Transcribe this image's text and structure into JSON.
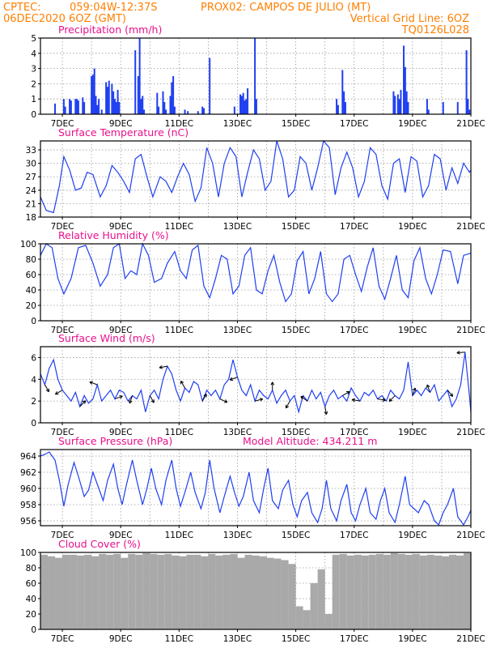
{
  "header": {
    "line1_left": "CPTEC:",
    "line1_coords": "059:04W-12:37S",
    "line1_location": "PROX02: CAMPOS DE JULIO (MT)",
    "line2_left": "06DEC2020 6OZ (GMT)",
    "line2_right": "Vertical Grid Line: 6OZ",
    "line3_right": "TQ0126L028"
  },
  "colors": {
    "header": "#ff7f00",
    "panel_title": "#e8108c",
    "series": "#1f3ff0",
    "cloud": "#a9a9a9",
    "wind_arrow": "#000000"
  },
  "x_axis": {
    "tick_labels": [
      "7DEC",
      "9DEC",
      "11DEC",
      "13DEC",
      "15DEC",
      "17DEC",
      "19DEC",
      "21DEC"
    ],
    "tick_days": [
      7,
      9,
      11,
      13,
      15,
      17,
      19,
      21
    ],
    "range_days": [
      6.25,
      21.0
    ]
  },
  "chart_data": [
    {
      "type": "bar",
      "title": "Precipitation (mm/h)",
      "ylim": [
        0,
        5
      ],
      "yticks": [
        0,
        1,
        2,
        3,
        4,
        5
      ],
      "x": [
        6.75,
        7.05,
        7.1,
        7.25,
        7.3,
        7.45,
        7.5,
        7.55,
        7.7,
        7.75,
        8.0,
        8.05,
        8.1,
        8.15,
        8.2,
        8.25,
        8.35,
        8.5,
        8.55,
        8.6,
        8.7,
        8.75,
        8.8,
        8.85,
        8.9,
        8.95,
        9.5,
        9.6,
        9.65,
        9.7,
        9.75,
        9.8,
        10.25,
        10.3,
        10.45,
        10.5,
        10.55,
        10.7,
        10.75,
        10.8,
        10.85,
        11.2,
        11.3,
        11.65,
        11.8,
        11.85,
        12.05,
        12.9,
        13.1,
        13.15,
        13.2,
        13.25,
        13.3,
        13.35,
        13.6,
        13.65,
        16.4,
        16.45,
        16.6,
        16.65,
        16.7,
        18.35,
        18.4,
        18.5,
        18.55,
        18.6,
        18.7,
        18.75,
        18.8,
        18.85,
        19.5,
        19.55,
        20.05,
        20.55,
        20.85,
        20.9,
        20.95
      ],
      "values": [
        0.7,
        1.0,
        0.5,
        1.0,
        0.9,
        1.0,
        1.0,
        0.9,
        1.1,
        0.8,
        2.5,
        2.6,
        3.0,
        1.2,
        0.6,
        1.0,
        0.3,
        2.1,
        1.8,
        2.2,
        2.0,
        1.5,
        1.0,
        0.8,
        1.6,
        0.8,
        4.2,
        2.5,
        5.0,
        1.0,
        1.2,
        0.3,
        1.4,
        0.5,
        1.5,
        0.8,
        0.3,
        1.2,
        2.1,
        2.5,
        0.5,
        0.3,
        0.2,
        0.2,
        0.5,
        0.4,
        3.7,
        0.5,
        1.3,
        1.2,
        1.4,
        0.9,
        1.0,
        1.7,
        5.0,
        1.0,
        1.0,
        0.6,
        2.9,
        1.5,
        0.8,
        1.5,
        1.2,
        1.3,
        1.0,
        1.6,
        4.5,
        3.1,
        1.5,
        0.8,
        1.0,
        0.3,
        0.8,
        0.8,
        4.2,
        1.0,
        0.3
      ]
    },
    {
      "type": "line",
      "title": "Surface Temperature (nC)",
      "ylim": [
        18,
        35
      ],
      "yticks": [
        18,
        21,
        24,
        27,
        30,
        33
      ],
      "x": [
        6.25,
        6.45,
        6.7,
        6.9,
        7.05,
        7.25,
        7.45,
        7.65,
        7.85,
        8.05,
        8.3,
        8.5,
        8.7,
        8.9,
        9.1,
        9.3,
        9.5,
        9.7,
        9.9,
        10.1,
        10.35,
        10.55,
        10.75,
        10.95,
        11.15,
        11.35,
        11.55,
        11.75,
        11.95,
        12.15,
        12.35,
        12.55,
        12.75,
        12.95,
        13.15,
        13.35,
        13.55,
        13.75,
        13.95,
        14.15,
        14.35,
        14.55,
        14.75,
        14.95,
        15.15,
        15.35,
        15.55,
        15.75,
        15.95,
        16.15,
        16.35,
        16.55,
        16.75,
        16.95,
        17.15,
        17.35,
        17.55,
        17.75,
        17.95,
        18.15,
        18.35,
        18.55,
        18.75,
        18.95,
        19.15,
        19.35,
        19.55,
        19.75,
        19.95,
        20.15,
        20.35,
        20.55,
        20.75,
        20.95,
        21.0
      ],
      "values": [
        22.5,
        19.5,
        19.0,
        25.0,
        31.5,
        28.5,
        24.0,
        24.5,
        28.0,
        27.5,
        22.5,
        25.0,
        29.5,
        28.0,
        26.0,
        23.5,
        31.0,
        32.0,
        27.0,
        22.5,
        27.0,
        26.0,
        23.5,
        27.0,
        30.0,
        27.5,
        21.5,
        24.5,
        33.5,
        30.0,
        22.5,
        30.0,
        33.5,
        31.5,
        22.5,
        28.0,
        33.0,
        31.0,
        24.0,
        26.0,
        35.0,
        31.0,
        22.5,
        24.0,
        31.5,
        30.0,
        24.0,
        29.0,
        35.0,
        33.5,
        23.0,
        29.0,
        32.5,
        29.0,
        22.5,
        26.0,
        33.5,
        32.0,
        25.0,
        22.0,
        30.0,
        31.0,
        23.5,
        31.5,
        30.5,
        22.5,
        25.0,
        32.0,
        31.0,
        24.0,
        29.0,
        25.5,
        30.0,
        28.0,
        28.5
      ]
    },
    {
      "type": "line",
      "title": "Relative Humidity (%)",
      "ylim": [
        0,
        100
      ],
      "yticks": [
        0,
        20,
        40,
        60,
        80,
        100
      ],
      "x": [
        6.25,
        6.45,
        6.65,
        6.85,
        7.05,
        7.3,
        7.55,
        7.8,
        8.05,
        8.3,
        8.55,
        8.75,
        8.95,
        9.15,
        9.35,
        9.55,
        9.75,
        9.95,
        10.15,
        10.4,
        10.6,
        10.85,
        11.05,
        11.25,
        11.45,
        11.65,
        11.85,
        12.05,
        12.25,
        12.45,
        12.65,
        12.85,
        13.05,
        13.25,
        13.45,
        13.65,
        13.85,
        14.05,
        14.25,
        14.45,
        14.65,
        14.85,
        15.05,
        15.25,
        15.45,
        15.65,
        15.85,
        16.05,
        16.25,
        16.45,
        16.65,
        16.85,
        17.05,
        17.25,
        17.45,
        17.65,
        17.85,
        18.05,
        18.25,
        18.45,
        18.65,
        18.85,
        19.05,
        19.25,
        19.45,
        19.65,
        19.85,
        20.05,
        20.3,
        20.55,
        20.75,
        21.0
      ],
      "values": [
        85,
        100,
        95,
        55,
        35,
        55,
        95,
        98,
        75,
        45,
        60,
        95,
        100,
        55,
        65,
        60,
        100,
        85,
        50,
        55,
        75,
        90,
        65,
        55,
        92,
        98,
        45,
        30,
        55,
        85,
        80,
        35,
        45,
        85,
        95,
        40,
        35,
        65,
        85,
        50,
        25,
        35,
        78,
        90,
        35,
        55,
        90,
        35,
        25,
        35,
        80,
        85,
        60,
        38,
        70,
        95,
        45,
        28,
        55,
        85,
        40,
        30,
        78,
        95,
        55,
        35,
        60,
        92,
        90,
        48,
        85,
        88
      ]
    },
    {
      "type": "line",
      "title": "Surface Wind (m/s)",
      "ylim": [
        0,
        7
      ],
      "yticks": [
        0,
        2,
        4,
        6
      ],
      "x": [
        6.25,
        6.4,
        6.55,
        6.7,
        6.85,
        7.0,
        7.15,
        7.3,
        7.45,
        7.6,
        7.75,
        7.9,
        8.05,
        8.2,
        8.35,
        8.5,
        8.65,
        8.8,
        8.95,
        9.1,
        9.25,
        9.4,
        9.55,
        9.7,
        9.85,
        10.0,
        10.15,
        10.3,
        10.45,
        10.6,
        10.75,
        10.9,
        11.05,
        11.2,
        11.35,
        11.5,
        11.65,
        11.8,
        11.95,
        12.1,
        12.25,
        12.4,
        12.55,
        12.7,
        12.85,
        13.0,
        13.15,
        13.3,
        13.45,
        13.6,
        13.75,
        13.9,
        14.05,
        14.2,
        14.35,
        14.5,
        14.65,
        14.8,
        14.95,
        15.1,
        15.25,
        15.4,
        15.55,
        15.7,
        15.85,
        16.0,
        16.15,
        16.3,
        16.45,
        16.6,
        16.75,
        16.9,
        17.05,
        17.2,
        17.35,
        17.5,
        17.65,
        17.8,
        17.95,
        18.1,
        18.25,
        18.4,
        18.55,
        18.7,
        18.85,
        19.0,
        19.15,
        19.3,
        19.45,
        19.6,
        19.75,
        19.9,
        20.05,
        20.2,
        20.35,
        20.5,
        20.65,
        20.8,
        20.95,
        21.0
      ],
      "values": [
        4.5,
        3.5,
        5.0,
        5.8,
        4.0,
        3.0,
        2.5,
        2.0,
        2.8,
        1.5,
        2.5,
        1.8,
        2.2,
        3.5,
        2.0,
        2.5,
        3.0,
        2.2,
        3.0,
        2.8,
        2.0,
        2.5,
        2.2,
        3.0,
        1.0,
        2.5,
        3.0,
        2.2,
        4.0,
        5.2,
        4.5,
        3.0,
        2.0,
        3.2,
        2.8,
        3.8,
        3.5,
        2.0,
        3.0,
        2.5,
        3.0,
        2.2,
        3.5,
        4.0,
        5.8,
        4.2,
        3.0,
        2.5,
        3.5,
        2.0,
        3.0,
        2.5,
        2.2,
        3.0,
        1.8,
        2.5,
        3.0,
        2.0,
        2.5,
        1.0,
        2.5,
        2.0,
        3.0,
        2.2,
        2.8,
        1.5,
        2.5,
        3.0,
        2.2,
        2.5,
        2.0,
        3.2,
        2.5,
        2.0,
        2.8,
        2.5,
        3.0,
        2.2,
        2.5,
        2.0,
        3.0,
        2.5,
        2.2,
        3.0,
        5.6,
        2.5,
        3.0,
        2.5,
        3.2,
        2.8,
        3.5,
        2.0,
        2.5,
        3.0,
        1.5,
        2.2,
        3.5,
        6.5,
        2.5,
        1.0
      ]
    },
    {
      "type": "line",
      "title": "Surface Pressure (hPa)",
      "annotation": "Model Altitude: 434.211 m",
      "ylim": [
        955.4,
        964.8
      ],
      "yticks": [
        956,
        958,
        960,
        962,
        964
      ],
      "x": [
        6.25,
        6.4,
        6.55,
        6.75,
        6.9,
        7.05,
        7.2,
        7.4,
        7.55,
        7.75,
        7.9,
        8.05,
        8.2,
        8.4,
        8.55,
        8.75,
        8.9,
        9.05,
        9.2,
        9.4,
        9.55,
        9.75,
        9.9,
        10.05,
        10.2,
        10.4,
        10.55,
        10.75,
        10.9,
        11.05,
        11.2,
        11.4,
        11.55,
        11.75,
        11.9,
        12.05,
        12.2,
        12.4,
        12.55,
        12.75,
        12.9,
        13.05,
        13.2,
        13.4,
        13.55,
        13.75,
        13.9,
        14.05,
        14.2,
        14.4,
        14.55,
        14.75,
        14.9,
        15.05,
        15.2,
        15.4,
        15.55,
        15.75,
        15.9,
        16.05,
        16.2,
        16.4,
        16.55,
        16.75,
        16.9,
        17.05,
        17.2,
        17.4,
        17.55,
        17.75,
        17.9,
        18.05,
        18.2,
        18.4,
        18.55,
        18.75,
        18.9,
        19.05,
        19.2,
        19.4,
        19.55,
        19.75,
        19.9,
        20.05,
        20.2,
        20.4,
        20.55,
        20.75,
        20.9,
        21.0
      ],
      "values": [
        964.0,
        964.2,
        964.5,
        963.5,
        961.0,
        957.8,
        960.5,
        963.2,
        961.5,
        959.0,
        959.8,
        962.0,
        960.5,
        958.5,
        961.0,
        963.0,
        960.0,
        958.0,
        960.5,
        963.5,
        961.0,
        958.0,
        960.0,
        962.5,
        960.0,
        958.0,
        961.0,
        963.5,
        960.0,
        957.8,
        959.5,
        962.0,
        959.5,
        957.5,
        959.5,
        963.5,
        960.0,
        957.0,
        959.0,
        961.5,
        959.5,
        957.8,
        959.0,
        962.0,
        958.5,
        957.0,
        960.0,
        962.5,
        958.5,
        957.5,
        959.8,
        961.0,
        958.0,
        956.5,
        958.5,
        959.5,
        957.0,
        955.8,
        957.5,
        961.0,
        957.5,
        956.0,
        958.5,
        960.5,
        957.0,
        956.0,
        958.0,
        960.0,
        957.0,
        956.2,
        958.5,
        960.0,
        957.0,
        955.8,
        958.0,
        961.5,
        958.0,
        957.5,
        957.0,
        958.5,
        958.0,
        956.0,
        955.5,
        957.0,
        958.0,
        960.0,
        956.5,
        955.5,
        956.5,
        957.3
      ]
    },
    {
      "type": "bar",
      "title": "Cloud Cover (%)",
      "ylim": [
        0,
        100
      ],
      "yticks": [
        0,
        20,
        40,
        60,
        80,
        100
      ],
      "x": [
        6.25,
        6.5,
        6.75,
        7.0,
        7.25,
        7.5,
        7.75,
        8.0,
        8.25,
        8.5,
        8.75,
        9.0,
        9.25,
        9.5,
        9.75,
        10.0,
        10.25,
        10.5,
        10.75,
        11.0,
        11.25,
        11.5,
        11.75,
        12.0,
        12.25,
        12.5,
        12.75,
        13.0,
        13.25,
        13.5,
        13.75,
        14.0,
        14.25,
        14.5,
        14.75,
        15.0,
        15.25,
        15.5,
        15.75,
        16.0,
        16.25,
        16.5,
        16.75,
        17.0,
        17.25,
        17.5,
        17.75,
        18.0,
        18.25,
        18.5,
        18.75,
        19.0,
        19.25,
        19.5,
        19.75,
        20.0,
        20.25,
        20.5,
        20.75
      ],
      "values": [
        97,
        95,
        93,
        97,
        97,
        96,
        97,
        95,
        98,
        97,
        98,
        93,
        98,
        97,
        99,
        98,
        97,
        98,
        96,
        95,
        97,
        97,
        95,
        98,
        96,
        97,
        98,
        93,
        97,
        96,
        95,
        93,
        92,
        90,
        85,
        30,
        25,
        60,
        78,
        20,
        97,
        98,
        96,
        97,
        96,
        97,
        98,
        97,
        99,
        98,
        97,
        98,
        96,
        97,
        96,
        95,
        97,
        96,
        99
      ]
    }
  ]
}
